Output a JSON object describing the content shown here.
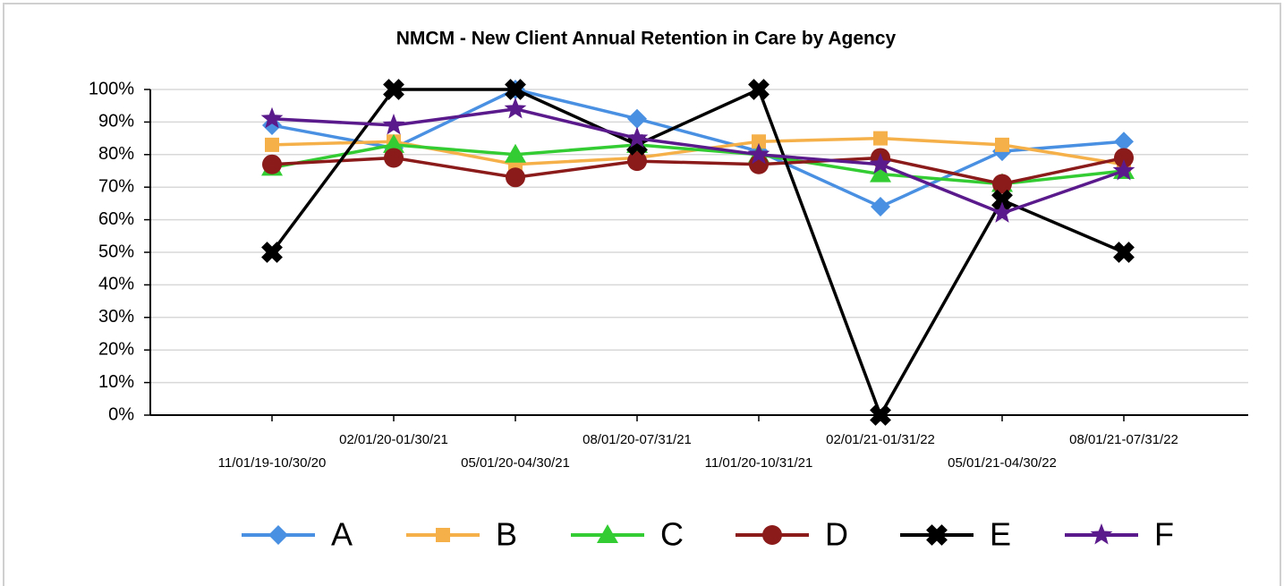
{
  "chart_data": {
    "type": "line",
    "title": "NMCM - New Client Annual Retention in Care by Agency",
    "categories": [
      "11/01/19-10/30/20",
      "02/01/20-01/30/21",
      "05/01/20-04/30/21",
      "08/01/20-07/31/21",
      "11/01/20-10/31/21",
      "02/01/21-01/31/22",
      "05/01/21-04/30/22",
      "08/01/21-07/31/22"
    ],
    "series": [
      {
        "name": "A",
        "color": "#4a90e2",
        "marker": "diamond",
        "values": [
          89,
          82,
          100,
          91,
          81,
          64,
          81,
          84
        ]
      },
      {
        "name": "B",
        "color": "#f5b04a",
        "marker": "square",
        "values": [
          83,
          84,
          77,
          79,
          84,
          85,
          83,
          77
        ]
      },
      {
        "name": "C",
        "color": "#33cc33",
        "marker": "triangle",
        "values": [
          76,
          83,
          80,
          83,
          80,
          74,
          71,
          75
        ]
      },
      {
        "name": "D",
        "color": "#8b1a1a",
        "marker": "circle",
        "values": [
          77,
          79,
          73,
          78,
          77,
          79,
          71,
          79
        ]
      },
      {
        "name": "E",
        "color": "#000000",
        "marker": "x",
        "values": [
          50,
          100,
          100,
          83,
          100,
          0,
          66,
          50
        ]
      },
      {
        "name": "F",
        "color": "#5b1a8c",
        "marker": "star",
        "values": [
          91,
          89,
          94,
          85,
          80,
          77,
          62,
          75
        ]
      }
    ],
    "ylim": [
      0,
      100
    ],
    "yticks": [
      {
        "value": 0,
        "label": "0%"
      },
      {
        "value": 10,
        "label": "10%"
      },
      {
        "value": 20,
        "label": "20%"
      },
      {
        "value": 30,
        "label": "30%"
      },
      {
        "value": 40,
        "label": "40%"
      },
      {
        "value": 50,
        "label": "50%"
      },
      {
        "value": 60,
        "label": "60%"
      },
      {
        "value": 70,
        "label": "70%"
      },
      {
        "value": 80,
        "label": "80%"
      },
      {
        "value": 90,
        "label": "90%"
      },
      {
        "value": 100,
        "label": "100%"
      }
    ],
    "grid": true,
    "legend": "bottom"
  }
}
